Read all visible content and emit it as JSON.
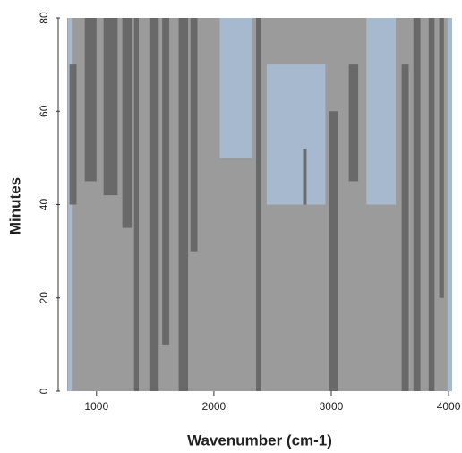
{
  "chart_data": {
    "type": "surface",
    "xlabel": "Wavenumber (cm-1)",
    "ylabel": "Minutes",
    "xlim": [
      750,
      4030
    ],
    "xticks": [
      1000,
      2000,
      3000,
      4000
    ],
    "ylim": [
      0,
      80
    ],
    "yticks": [
      0,
      20,
      40,
      60,
      80
    ],
    "base_color": "#9b9b9b",
    "light_bands": {
      "color": "#a9bdd5",
      "x": [
        [
          755,
          790
        ],
        [
          2050,
          2330
        ],
        [
          2450,
          2950
        ],
        [
          3300,
          3550
        ],
        [
          3990,
          4030
        ]
      ],
      "y": [
        [
          0,
          80
        ],
        [
          50,
          80
        ],
        [
          40,
          70
        ],
        [
          40,
          80
        ],
        [
          0,
          80
        ]
      ]
    },
    "dark_bands": {
      "color": "#646464",
      "x": [
        [
          770,
          830
        ],
        [
          900,
          1000
        ],
        [
          1060,
          1180
        ],
        [
          1220,
          1300
        ],
        [
          1320,
          1360
        ],
        [
          1450,
          1530
        ],
        [
          1560,
          1620
        ],
        [
          1700,
          1780
        ],
        [
          1800,
          1860
        ],
        [
          2360,
          2400
        ],
        [
          2760,
          2790
        ],
        [
          2980,
          3060
        ],
        [
          3150,
          3230
        ],
        [
          3600,
          3660
        ],
        [
          3700,
          3760
        ],
        [
          3830,
          3880
        ],
        [
          3920,
          3960
        ]
      ],
      "y": [
        [
          40,
          70
        ],
        [
          45,
          80
        ],
        [
          42,
          80
        ],
        [
          35,
          80
        ],
        [
          0,
          80
        ],
        [
          0,
          80
        ],
        [
          10,
          80
        ],
        [
          0,
          80
        ],
        [
          30,
          80
        ],
        [
          0,
          80
        ],
        [
          40,
          52
        ],
        [
          0,
          60
        ],
        [
          45,
          70
        ],
        [
          0,
          70
        ],
        [
          0,
          80
        ],
        [
          0,
          80
        ],
        [
          20,
          80
        ]
      ]
    }
  }
}
